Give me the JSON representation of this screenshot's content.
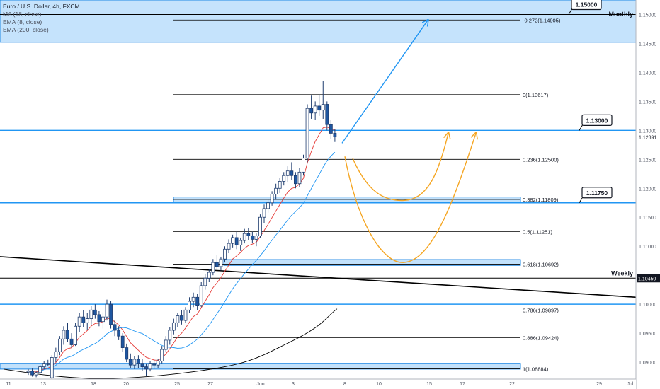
{
  "legend": {
    "title": "Euro / U.S. Dollar, 4h, FXCM",
    "ind1": "MA (18, close)",
    "ind2": "EMA (8, close)",
    "ind3": "EMA (200, close)"
  },
  "colors": {
    "zone_fill": "#bbdefb",
    "zone_stroke": "#1e88e5",
    "hline": "#2196f3",
    "fib": "#000000",
    "ma18": "#e53935",
    "ema8": "#2196f3",
    "ema200": "#000000",
    "candle_up": "#ffffff",
    "candle_down": "#1e56a0",
    "arrow_up": "#2196f3",
    "arrow_orange": "#f5a623",
    "trend": "#000000"
  },
  "chart_data": {
    "type": "candlestick",
    "symbol": "Euro / U.S. Dollar, 4h, FXCM",
    "ylim": [
      1.0872,
      1.1525
    ],
    "price_ticks": [
      "1.15000",
      "1.14500",
      "1.14000",
      "1.13500",
      "1.13000",
      "1.12500",
      "1.12000",
      "1.11500",
      "1.11000",
      "1.10500",
      "1.10000",
      "1.09500",
      "1.09000"
    ],
    "date_ticks": [
      "11",
      "13",
      "18",
      "20",
      "25",
      "27",
      "Jun",
      "3",
      "8",
      "10",
      "15",
      "17",
      "22",
      "29",
      "Jul"
    ],
    "price_labels": [
      {
        "text": "1.15000",
        "price": 1.15,
        "boxed": true
      },
      {
        "text": "1.13000",
        "price": 1.13,
        "boxed": true
      },
      {
        "text": "1.11750",
        "price": 1.1175,
        "boxed": true
      }
    ],
    "current_price": "1.12891",
    "weekly_price_tag": "1.10450",
    "zones": [
      {
        "name": "Monthly",
        "from": 1.1452,
        "to": 1.1525
      },
      {
        "name": "",
        "from": 1.1175,
        "to": 1.1185
      },
      {
        "name": "",
        "from": 1.1067,
        "to": 1.1077
      },
      {
        "name": "",
        "from": 1.0888,
        "to": 1.0898
      }
    ],
    "horizontal_lines": [
      {
        "price": 1.13,
        "label": ""
      },
      {
        "price": 1.1175,
        "label": ""
      },
      {
        "price": 1.1045,
        "label": "Weekly"
      },
      {
        "price": 1.1,
        "label": ""
      }
    ],
    "fibonacci": [
      {
        "label": "-0.272(1.14905)",
        "price": 1.14905
      },
      {
        "label": "0(1.13617)",
        "price": 1.13617
      },
      {
        "label": "0.236(1.12500)",
        "price": 1.125
      },
      {
        "label": "0.382(1.11809)",
        "price": 1.11809
      },
      {
        "label": "0.5(1.11251)",
        "price": 1.11251
      },
      {
        "label": "0.618(1.10692)",
        "price": 1.10692
      },
      {
        "label": "0.786(1.09897)",
        "price": 1.09897
      },
      {
        "label": "0.886(1.09424)",
        "price": 1.09424
      },
      {
        "label": "1(1.08884)",
        "price": 1.08884
      }
    ],
    "candles": [
      [
        1.0883,
        1.0888,
        1.0878,
        1.0885
      ],
      [
        1.0885,
        1.0889,
        1.0875,
        1.0878
      ],
      [
        1.0878,
        1.0884,
        1.0874,
        1.0882
      ],
      [
        1.0882,
        1.0895,
        1.088,
        1.0892
      ],
      [
        1.0892,
        1.0902,
        1.0888,
        1.0898
      ],
      [
        1.0898,
        1.0904,
        1.0894,
        1.0896
      ],
      [
        1.0873,
        1.0912,
        1.087,
        1.0908
      ],
      [
        1.0908,
        1.0925,
        1.09,
        1.0918
      ],
      [
        1.0918,
        1.0945,
        1.0912,
        1.094
      ],
      [
        1.094,
        1.0962,
        1.093,
        1.0955
      ],
      [
        1.0955,
        1.0968,
        1.0935,
        1.094
      ],
      [
        1.094,
        1.095,
        1.0925,
        1.093
      ],
      [
        1.093,
        1.0968,
        1.0928,
        1.0962
      ],
      [
        1.0962,
        1.0985,
        1.0952,
        1.0978
      ],
      [
        1.0978,
        1.099,
        1.096,
        1.0968
      ],
      [
        1.0968,
        1.0985,
        1.0955,
        1.0975
      ],
      [
        1.0975,
        1.0997,
        1.0965,
        1.099
      ],
      [
        1.099,
        1.1,
        1.0975,
        1.0982
      ],
      [
        1.0982,
        1.0988,
        1.0962,
        1.097
      ],
      [
        1.097,
        1.0986,
        1.0958,
        1.0978
      ],
      [
        1.0978,
        1.1008,
        1.0972,
        1.1
      ],
      [
        1.1,
        1.1005,
        1.0958,
        1.0965
      ],
      [
        1.0965,
        1.0972,
        1.0945,
        1.0955
      ],
      [
        1.0955,
        1.0962,
        1.0938,
        1.0945
      ],
      [
        1.0945,
        1.095,
        1.0918,
        1.0925
      ],
      [
        1.0925,
        1.0932,
        1.09,
        1.0905
      ],
      [
        1.0905,
        1.0915,
        1.089,
        1.0895
      ],
      [
        1.0895,
        1.091,
        1.0888,
        1.0905
      ],
      [
        1.0905,
        1.0912,
        1.089,
        1.0898
      ],
      [
        1.0898,
        1.0905,
        1.0885,
        1.0892
      ],
      [
        1.0892,
        1.0898,
        1.0876,
        1.0888
      ],
      [
        1.0888,
        1.0902,
        1.0884,
        1.0898
      ],
      [
        1.0898,
        1.0906,
        1.0888,
        1.0895
      ],
      [
        1.0895,
        1.0905,
        1.089,
        1.0902
      ],
      [
        1.0902,
        1.0928,
        1.0898,
        1.0922
      ],
      [
        1.0922,
        1.0945,
        1.0918,
        1.0938
      ],
      [
        1.0938,
        1.096,
        1.093,
        1.0955
      ],
      [
        1.0955,
        1.0975,
        1.0948,
        1.0968
      ],
      [
        1.0968,
        1.0985,
        1.096,
        1.098
      ],
      [
        1.098,
        1.099,
        1.0965,
        1.0972
      ],
      [
        1.0972,
        1.0995,
        1.0968,
        1.099
      ],
      [
        1.099,
        1.1012,
        1.0985,
        1.1005
      ],
      [
        1.1005,
        1.102,
        1.0995,
        1.1012
      ],
      [
        1.1012,
        1.1018,
        1.099,
        1.0998
      ],
      [
        1.0998,
        1.1038,
        1.0995,
        1.1032
      ],
      [
        1.1032,
        1.1052,
        1.1025,
        1.1045
      ],
      [
        1.1045,
        1.106,
        1.1038,
        1.1055
      ],
      [
        1.1055,
        1.1078,
        1.105,
        1.1072
      ],
      [
        1.1072,
        1.1085,
        1.106,
        1.1065
      ],
      [
        1.1065,
        1.1082,
        1.1058,
        1.1078
      ],
      [
        1.1078,
        1.11,
        1.1072,
        1.1095
      ],
      [
        1.1095,
        1.1112,
        1.1088,
        1.1105
      ],
      [
        1.1105,
        1.112,
        1.1098,
        1.1115
      ],
      [
        1.1115,
        1.1125,
        1.1095,
        1.1102
      ],
      [
        1.1102,
        1.1115,
        1.1092,
        1.111
      ],
      [
        1.111,
        1.113,
        1.1105,
        1.1122
      ],
      [
        1.1122,
        1.1132,
        1.111,
        1.1118
      ],
      [
        1.1118,
        1.1125,
        1.1105,
        1.1112
      ],
      [
        1.1112,
        1.1122,
        1.11,
        1.1118
      ],
      [
        1.1118,
        1.1155,
        1.1115,
        1.115
      ],
      [
        1.115,
        1.1172,
        1.114,
        1.1165
      ],
      [
        1.1165,
        1.1182,
        1.1158,
        1.1175
      ],
      [
        1.1175,
        1.1195,
        1.117,
        1.119
      ],
      [
        1.119,
        1.1208,
        1.118,
        1.12
      ],
      [
        1.12,
        1.1218,
        1.1192,
        1.1212
      ],
      [
        1.1212,
        1.1228,
        1.1205,
        1.1222
      ],
      [
        1.1222,
        1.1238,
        1.121,
        1.123
      ],
      [
        1.123,
        1.1245,
        1.1215,
        1.1222
      ],
      [
        1.1222,
        1.1228,
        1.12,
        1.1208
      ],
      [
        1.1208,
        1.1235,
        1.1202,
        1.1228
      ],
      [
        1.1228,
        1.1258,
        1.1222,
        1.1252
      ],
      [
        1.1252,
        1.1345,
        1.1245,
        1.1338
      ],
      [
        1.1338,
        1.136,
        1.132,
        1.133
      ],
      [
        1.133,
        1.135,
        1.1318,
        1.1342
      ],
      [
        1.1342,
        1.1362,
        1.1325,
        1.1335
      ],
      [
        1.1335,
        1.1385,
        1.132,
        1.1345
      ],
      [
        1.1345,
        1.135,
        1.13,
        1.131
      ],
      [
        1.131,
        1.1318,
        1.1285,
        1.1295
      ],
      [
        1.1295,
        1.1302,
        1.128,
        1.1289
      ]
    ],
    "scenarios": [
      "up-arrow to 1.14905",
      "small U via 0.382 zone",
      "large U via 0.618 zone"
    ]
  }
}
